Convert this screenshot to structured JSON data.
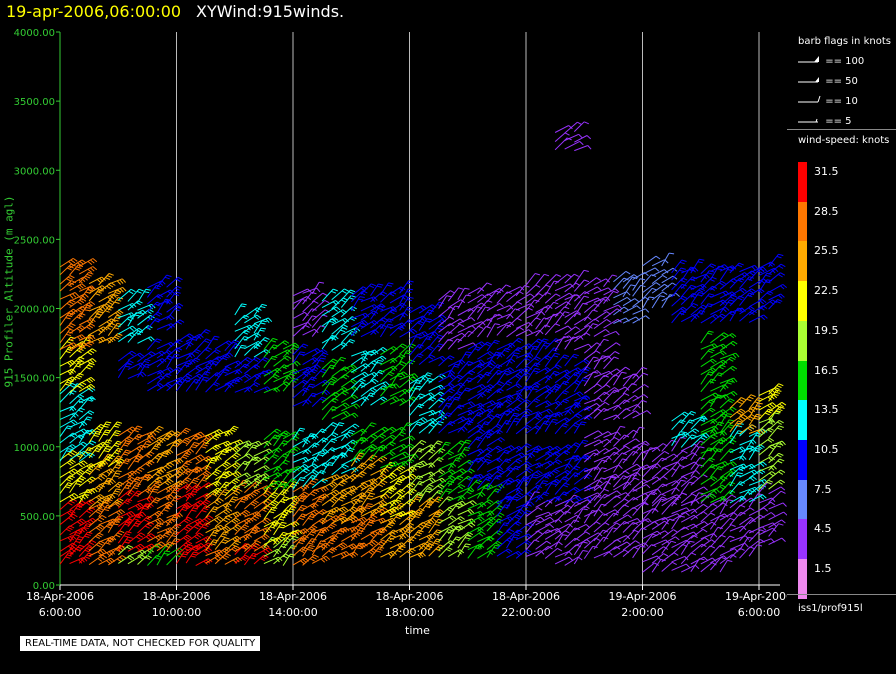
{
  "header": {
    "date_time": "19-apr-2006,06:00:00",
    "product": "XYWind:915winds."
  },
  "footer": {
    "quality_note": "REAL-TIME DATA, NOT CHECKED FOR QUALITY"
  },
  "legend": {
    "flags_title": "barb flags in knots",
    "flags": [
      "== 100",
      "== 50",
      "== 10",
      "== 5"
    ],
    "speed_title": "wind-speed: knots",
    "speed_levels": [
      {
        "label": "31.5",
        "color": "#ff0000"
      },
      {
        "label": "28.5",
        "color": "#ff7700"
      },
      {
        "label": "25.5",
        "color": "#ffaa00"
      },
      {
        "label": "22.5",
        "color": "#ffff00"
      },
      {
        "label": "19.5",
        "color": "#aaff33"
      },
      {
        "label": "16.5",
        "color": "#00dd00"
      },
      {
        "label": "13.5",
        "color": "#00ffff"
      },
      {
        "label": "10.5",
        "color": "#0000ff"
      },
      {
        "label": "7.5",
        "color": "#6688ff"
      },
      {
        "label": "4.5",
        "color": "#9933ff"
      },
      {
        "label": "1.5",
        "color": "#ee88ee"
      }
    ],
    "source": "iss1/prof915l"
  },
  "chart_data": {
    "type": "scatter",
    "ylabel": "915 Profiler Altitude (m agl)",
    "xlabel": "time",
    "ylim": [
      0,
      4000
    ],
    "yticks": [
      "0.00",
      "500.00",
      "1000.00",
      "1500.00",
      "2000.00",
      "2500.00",
      "3000.00",
      "3500.00",
      "4000.00"
    ],
    "xticks": [
      {
        "date": "18-Apr-2006",
        "time": "6:00:00"
      },
      {
        "date": "18-Apr-2006",
        "time": "10:00:00"
      },
      {
        "date": "18-Apr-2006",
        "time": "14:00:00"
      },
      {
        "date": "18-Apr-2006",
        "time": "18:00:00"
      },
      {
        "date": "18-Apr-2006",
        "time": "22:00:00"
      },
      {
        "date": "19-Apr-2006",
        "time": "2:00:00"
      },
      {
        "date": "19-Apr-2006",
        "time": "6:00:00"
      }
    ],
    "grid": "vertical",
    "series": [
      {
        "x": 0.0,
        "bands": [
          [
            150,
            250,
            31.5
          ],
          [
            250,
            600,
            31.5
          ],
          [
            600,
            900,
            22.5
          ],
          [
            900,
            1400,
            13.5
          ],
          [
            1400,
            1700,
            22.5
          ],
          [
            1700,
            2300,
            28.5
          ]
        ]
      },
      {
        "x": 1.0,
        "bands": [
          [
            150,
            250,
            28.5
          ],
          [
            250,
            550,
            28.5
          ],
          [
            550,
            850,
            25.5
          ],
          [
            850,
            1100,
            22.5
          ],
          [
            1750,
            2200,
            25.5
          ]
        ]
      },
      {
        "x": 2.0,
        "bands": [
          [
            150,
            250,
            19.5
          ],
          [
            250,
            650,
            31.5
          ],
          [
            650,
            1100,
            28.5
          ],
          [
            1500,
            1650,
            10.5
          ],
          [
            1750,
            2100,
            13.5
          ]
        ]
      },
      {
        "x": 3.0,
        "bands": [
          [
            150,
            250,
            16.5
          ],
          [
            250,
            700,
            28.5
          ],
          [
            700,
            1100,
            25.5
          ],
          [
            1400,
            1700,
            10.5
          ],
          [
            1850,
            2150,
            10.5
          ]
        ]
      },
      {
        "x": 4.0,
        "bands": [
          [
            150,
            250,
            31.5
          ],
          [
            250,
            700,
            31.5
          ],
          [
            700,
            1100,
            28.5
          ],
          [
            1400,
            1800,
            10.5
          ]
        ]
      },
      {
        "x": 5.0,
        "bands": [
          [
            150,
            250,
            28.5
          ],
          [
            250,
            650,
            25.5
          ],
          [
            650,
            1100,
            22.5
          ],
          [
            1400,
            1700,
            10.5
          ]
        ]
      },
      {
        "x": 6.0,
        "bands": [
          [
            150,
            250,
            31.5
          ],
          [
            250,
            700,
            28.5
          ],
          [
            700,
            1050,
            19.5
          ],
          [
            1400,
            1600,
            10.5
          ],
          [
            1650,
            1950,
            13.5
          ]
        ]
      },
      {
        "x": 7.0,
        "bands": [
          [
            150,
            300,
            19.5
          ],
          [
            300,
            700,
            22.5
          ],
          [
            700,
            1100,
            16.5
          ],
          [
            1400,
            1700,
            16.5
          ]
        ]
      },
      {
        "x": 8.0,
        "bands": [
          [
            150,
            250,
            28.5
          ],
          [
            250,
            700,
            28.5
          ],
          [
            700,
            1100,
            13.5
          ],
          [
            1300,
            1700,
            10.5
          ],
          [
            1800,
            2100,
            4.5
          ]
        ]
      },
      {
        "x": 9.0,
        "bands": [
          [
            200,
            450,
            28.5
          ],
          [
            450,
            800,
            25.5
          ],
          [
            800,
            1100,
            13.5
          ],
          [
            1200,
            1600,
            16.5
          ],
          [
            1700,
            2100,
            13.5
          ]
        ]
      },
      {
        "x": 10.0,
        "bands": [
          [
            200,
            500,
            28.5
          ],
          [
            500,
            900,
            25.5
          ],
          [
            900,
            1100,
            16.5
          ],
          [
            1300,
            1700,
            13.5
          ],
          [
            1800,
            2100,
            10.5
          ]
        ]
      },
      {
        "x": 11.0,
        "bands": [
          [
            200,
            500,
            25.5
          ],
          [
            500,
            850,
            22.5
          ],
          [
            850,
            1100,
            16.5
          ],
          [
            1300,
            1700,
            16.5
          ],
          [
            1800,
            2100,
            10.5
          ]
        ]
      },
      {
        "x": 12.0,
        "bands": [
          [
            200,
            600,
            25.5
          ],
          [
            600,
            1000,
            19.5
          ],
          [
            1100,
            1500,
            13.5
          ],
          [
            1600,
            2000,
            10.5
          ]
        ]
      },
      {
        "x": 13.0,
        "bands": [
          [
            200,
            600,
            19.5
          ],
          [
            600,
            1000,
            16.5
          ],
          [
            1100,
            1600,
            10.5
          ],
          [
            1700,
            2100,
            4.5
          ]
        ]
      },
      {
        "x": 14.0,
        "bands": [
          [
            200,
            700,
            16.5
          ],
          [
            700,
            1100,
            10.5
          ],
          [
            1100,
            1700,
            10.5
          ],
          [
            1800,
            2100,
            4.5
          ]
        ]
      },
      {
        "x": 15.0,
        "bands": [
          [
            200,
            600,
            10.5
          ],
          [
            600,
            1000,
            10.5
          ],
          [
            1100,
            1700,
            10.5
          ],
          [
            1800,
            2100,
            4.5
          ]
        ]
      },
      {
        "x": 16.0,
        "bands": [
          [
            200,
            600,
            4.5
          ],
          [
            600,
            1000,
            10.5
          ],
          [
            1100,
            1700,
            10.5
          ],
          [
            1800,
            2200,
            4.5
          ]
        ]
      },
      {
        "x": 17.0,
        "bands": [
          [
            150,
            600,
            4.5
          ],
          [
            600,
            1000,
            10.5
          ],
          [
            1100,
            1600,
            10.5
          ],
          [
            1700,
            2200,
            4.5
          ],
          [
            3150,
            3300,
            4.5
          ]
        ]
      },
      {
        "x": 18.0,
        "bands": [
          [
            200,
            700,
            4.5
          ],
          [
            700,
            1100,
            4.5
          ],
          [
            1200,
            1700,
            4.5
          ],
          [
            1800,
            2200,
            4.5
          ]
        ]
      },
      {
        "x": 19.0,
        "bands": [
          [
            200,
            700,
            4.5
          ],
          [
            700,
            1100,
            4.5
          ],
          [
            1200,
            1500,
            4.5
          ],
          [
            1900,
            2200,
            7.5
          ]
        ]
      },
      {
        "x": 20.0,
        "bands": [
          [
            100,
            600,
            4.5
          ],
          [
            600,
            1000,
            4.5
          ],
          [
            2000,
            2300,
            7.5
          ]
        ]
      },
      {
        "x": 21.0,
        "bands": [
          [
            100,
            600,
            4.5
          ],
          [
            600,
            1000,
            4.5
          ],
          [
            1000,
            1200,
            13.5
          ],
          [
            1900,
            2300,
            10.5
          ]
        ]
      },
      {
        "x": 22.0,
        "bands": [
          [
            100,
            600,
            4.5
          ],
          [
            600,
            1100,
            16.5
          ],
          [
            1100,
            1800,
            16.5
          ],
          [
            1900,
            2300,
            10.5
          ]
        ]
      },
      {
        "x": 23.0,
        "bands": [
          [
            200,
            600,
            4.5
          ],
          [
            600,
            1100,
            13.5
          ],
          [
            1100,
            1300,
            25.5
          ],
          [
            1900,
            2300,
            10.5
          ]
        ]
      },
      {
        "x": 24.0,
        "bands": [
          [
            300,
            700,
            4.5
          ],
          [
            700,
            1200,
            19.5
          ],
          [
            1200,
            1400,
            22.5
          ],
          [
            2000,
            2300,
            10.5
          ]
        ]
      }
    ]
  }
}
